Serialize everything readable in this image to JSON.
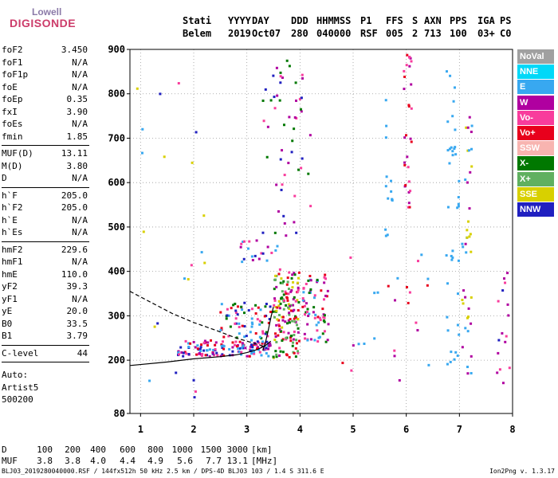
{
  "logo": {
    "line1": "Lowell",
    "line2": "DIGISONDE"
  },
  "header": {
    "cols": [
      {
        "label": "Stati",
        "value": "Belem"
      },
      {
        "label": "YYYY",
        "value": "2019"
      },
      {
        "label": "DAY",
        "value": "Oct07"
      },
      {
        "label": "DDD",
        "value": "280"
      },
      {
        "label": "HHMMSS",
        "value": "040000"
      },
      {
        "label": "P1",
        "value": "RSF"
      },
      {
        "label": "FFS",
        "value": "005"
      },
      {
        "label": "S",
        "value": "2"
      },
      {
        "label": "AXN",
        "value": "713"
      },
      {
        "label": "PPS",
        "value": "100"
      },
      {
        "label": "IGA",
        "value": "03+"
      },
      {
        "label": "PS",
        "value": "C0"
      }
    ]
  },
  "params": {
    "group1": [
      {
        "name": "foF2",
        "value": "3.450"
      },
      {
        "name": "foF1",
        "value": "N/A"
      },
      {
        "name": "foF1p",
        "value": "N/A"
      },
      {
        "name": "foE",
        "value": "N/A"
      },
      {
        "name": "foEp",
        "value": "0.35"
      },
      {
        "name": "fxI",
        "value": "3.90"
      },
      {
        "name": "foEs",
        "value": "N/A"
      },
      {
        "name": "fmin",
        "value": "1.85"
      }
    ],
    "group2": [
      {
        "name": "MUF(D)",
        "value": "13.11"
      },
      {
        "name": "M(D)",
        "value": "3.80"
      },
      {
        "name": "D",
        "value": "N/A"
      }
    ],
    "group3": [
      {
        "name": "h`F",
        "value": "205.0"
      },
      {
        "name": "h`F2",
        "value": "205.0"
      },
      {
        "name": "h`E",
        "value": "N/A"
      },
      {
        "name": "h`Es",
        "value": "N/A"
      }
    ],
    "group4": [
      {
        "name": "hmF2",
        "value": "229.6"
      },
      {
        "name": "hmF1",
        "value": "N/A"
      },
      {
        "name": "hmE",
        "value": "110.0"
      },
      {
        "name": "yF2",
        "value": "39.3"
      },
      {
        "name": "yF1",
        "value": "N/A"
      },
      {
        "name": "yE",
        "value": "20.0"
      },
      {
        "name": "B0",
        "value": "33.5"
      },
      {
        "name": "B1",
        "value": "3.79"
      }
    ],
    "group5": [
      {
        "name": "C-level",
        "value": "44"
      }
    ],
    "auto": [
      "Auto:",
      "Artist5",
      "500200"
    ]
  },
  "legend": [
    {
      "label": "NoVal",
      "color": "#a0a0a0"
    },
    {
      "label": "NNE",
      "color": "#00d8f8"
    },
    {
      "label": "E",
      "color": "#38a8f0"
    },
    {
      "label": "W",
      "color": "#b000a0"
    },
    {
      "label": "Vo-",
      "color": "#f83c9c"
    },
    {
      "label": "Vo+",
      "color": "#e8001c"
    },
    {
      "label": "SSW",
      "color": "#f8b4b0"
    },
    {
      "label": "X-",
      "color": "#007800"
    },
    {
      "label": "X+",
      "color": "#60b060"
    },
    {
      "label": "SSE",
      "color": "#d8d000"
    },
    {
      "label": "NNW",
      "color": "#2020c0"
    }
  ],
  "footer": {
    "d_label": "D",
    "d_values": [
      "100",
      "200",
      "400",
      "600",
      "800",
      "1000",
      "1500",
      "3000"
    ],
    "d_unit": "[km]",
    "muf_label": "MUF",
    "muf_values": [
      "3.8",
      "3.8",
      "4.0",
      "4.4",
      "4.9",
      "5.6",
      "7.7",
      "13.1"
    ],
    "muf_unit": "[MHz]",
    "file_info": "BLJ03_2019280040000.RSF / 144fx512h 50 kHz 2.5 km / DPS-4D BLJ03 103 / 1.4 S 311.6 E",
    "version": "Ion2Png v. 1.3.17"
  },
  "chart_data": {
    "type": "scatter",
    "xlim": [
      0.8,
      8.0
    ],
    "ylim": [
      80,
      900
    ],
    "x_ticks": [
      1,
      2,
      3,
      4,
      5,
      6,
      7,
      8
    ],
    "y_ticks": [
      80,
      200,
      300,
      400,
      500,
      600,
      700,
      800,
      900
    ],
    "grid": true,
    "legend_position": "right",
    "traces": {
      "trace_solid": [
        [
          0.8,
          188
        ],
        [
          1.5,
          196
        ],
        [
          2.0,
          203
        ],
        [
          2.5,
          208
        ],
        [
          2.8,
          212
        ],
        [
          3.0,
          217
        ],
        [
          3.2,
          224
        ],
        [
          3.35,
          233
        ],
        [
          3.45,
          243
        ]
      ],
      "trace_dashed": [
        [
          0.8,
          355
        ],
        [
          1.2,
          330
        ],
        [
          1.6,
          305
        ],
        [
          2.0,
          285
        ],
        [
          2.4,
          268
        ],
        [
          2.8,
          250
        ],
        [
          3.0,
          243
        ],
        [
          3.2,
          236
        ],
        [
          3.35,
          230
        ]
      ],
      "trace_upper": [
        [
          3.3,
          222
        ],
        [
          3.35,
          240
        ],
        [
          3.4,
          265
        ],
        [
          3.45,
          295
        ],
        [
          3.5,
          320
        ]
      ]
    },
    "echo_clusters": [
      {
        "x": [
          1.7,
          3.45
        ],
        "y": [
          208,
          245
        ],
        "colors": [
          "#f83c9c",
          "#e8001c",
          "#38a8f0",
          "#b000a0",
          "#2020c0"
        ],
        "n": 140
      },
      {
        "x": [
          2.5,
          3.45
        ],
        "y": [
          240,
          330
        ],
        "colors": [
          "#f83c9c",
          "#e8001c",
          "#38a8f0",
          "#007800",
          "#2020c0"
        ],
        "n": 70
      },
      {
        "x": [
          3.5,
          4.0
        ],
        "y": [
          205,
          405
        ],
        "colors": [
          "#007800",
          "#60b060",
          "#d8d000",
          "#e8001c",
          "#f83c9c",
          "#b000a0"
        ],
        "n": 150
      },
      {
        "x": [
          4.05,
          4.55
        ],
        "y": [
          240,
          395
        ],
        "colors": [
          "#f83c9c",
          "#e8001c",
          "#b000a0",
          "#007800",
          "#38a8f0"
        ],
        "n": 70
      },
      {
        "x": [
          2.8,
          3.6
        ],
        "y": [
          420,
          470
        ],
        "colors": [
          "#f83c9c",
          "#b000a0",
          "#2020c0",
          "#38a8f0"
        ],
        "n": 20
      },
      {
        "x": [
          3.3,
          4.2
        ],
        "y": [
          480,
          880
        ],
        "colors": [
          "#2020c0",
          "#007800",
          "#b000a0",
          "#f83c9c"
        ],
        "n": 55
      },
      {
        "x": [
          5.6,
          5.75
        ],
        "y": [
          440,
          830
        ],
        "colors": [
          "#38a8f0"
        ],
        "n": 14
      },
      {
        "x": [
          5.95,
          6.1
        ],
        "y": [
          540,
          900
        ],
        "colors": [
          "#b000a0",
          "#f83c9c",
          "#e8001c"
        ],
        "n": 30
      },
      {
        "x": [
          6.75,
          7.0
        ],
        "y": [
          190,
          860
        ],
        "colors": [
          "#38a8f0"
        ],
        "n": 40
      },
      {
        "x": [
          7.05,
          7.25
        ],
        "y": [
          160,
          760
        ],
        "colors": [
          "#38a8f0",
          "#d8d000",
          "#b000a0"
        ],
        "n": 40
      },
      {
        "x": [
          7.7,
          7.95
        ],
        "y": [
          120,
          400
        ],
        "colors": [
          "#b000a0",
          "#f83c9c",
          "#2020c0"
        ],
        "n": 16
      },
      {
        "x": [
          4.8,
          6.6
        ],
        "y": [
          150,
          480
        ],
        "colors": [
          "#38a8f0",
          "#e8001c",
          "#b000a0",
          "#f83c9c"
        ],
        "n": 25
      },
      {
        "x": [
          0.9,
          2.4
        ],
        "y": [
          90,
          830
        ],
        "colors": [
          "#2020c0",
          "#38a8f0",
          "#f83c9c",
          "#d8d000"
        ],
        "n": 22
      }
    ]
  }
}
